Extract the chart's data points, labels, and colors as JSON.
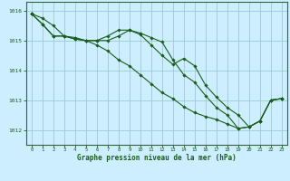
{
  "background_color": "#cceeff",
  "grid_color": "#99cccc",
  "line_color": "#1a5c1a",
  "xlabel": "Graphe pression niveau de la mer (hPa)",
  "xlim": [
    -0.5,
    23.5
  ],
  "ylim": [
    1011.5,
    1016.3
  ],
  "yticks": [
    1012,
    1013,
    1014,
    1015,
    1016
  ],
  "xticks": [
    0,
    1,
    2,
    3,
    4,
    5,
    6,
    7,
    8,
    9,
    10,
    11,
    12,
    13,
    14,
    15,
    16,
    17,
    18,
    19,
    20,
    21,
    22,
    23
  ],
  "line1": [
    1015.9,
    1015.75,
    1015.5,
    1015.15,
    1015.1,
    1015.0,
    1015.0,
    1015.15,
    1015.35,
    1015.35,
    1015.25,
    1015.1,
    1014.95,
    1014.35,
    1013.85,
    1013.6,
    1013.15,
    1012.75,
    1012.5,
    1012.05,
    1012.1,
    1012.3,
    1013.0,
    1013.05
  ],
  "line2": [
    1015.9,
    1015.55,
    1015.15,
    1015.15,
    1015.05,
    1015.0,
    1015.0,
    1015.0,
    1015.15,
    1015.35,
    1015.2,
    1014.85,
    1014.5,
    1014.2,
    1014.4,
    1014.15,
    1013.5,
    1013.1,
    1012.75,
    1012.5,
    1012.1,
    1012.3,
    1013.0,
    1013.05
  ],
  "line3": [
    1015.9,
    1015.55,
    1015.15,
    1015.15,
    1015.05,
    1015.0,
    1014.85,
    1014.65,
    1014.35,
    1014.15,
    1013.85,
    1013.55,
    1013.25,
    1013.05,
    1012.78,
    1012.58,
    1012.45,
    1012.35,
    1012.2,
    1012.05,
    1012.1,
    1012.3,
    1013.0,
    1013.05
  ]
}
